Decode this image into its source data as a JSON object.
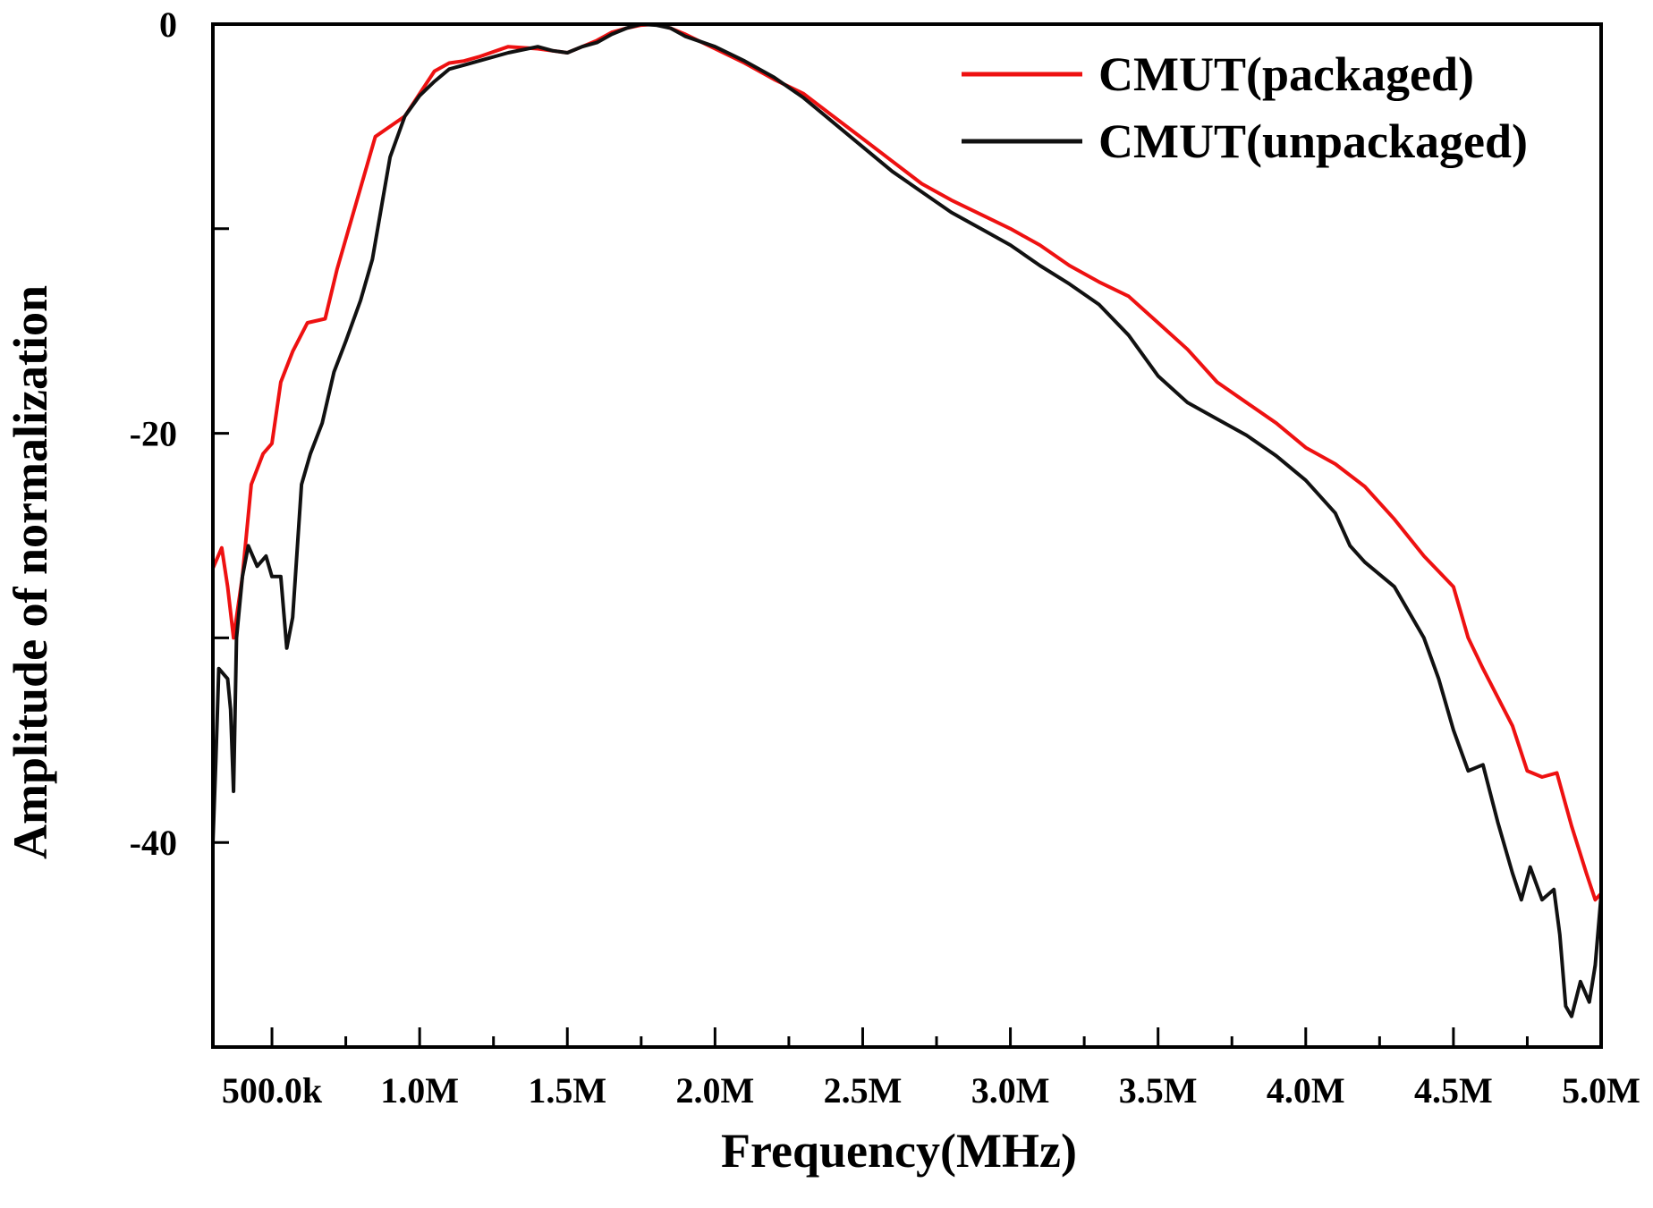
{
  "chart_data": {
    "type": "line",
    "title": "",
    "xlabel": "Frequency(MHz)",
    "ylabel": "Amplitude of normalization",
    "xlim": [
      0.3,
      5.0
    ],
    "ylim": [
      -50,
      0
    ],
    "xticks": [
      {
        "value": 0.5,
        "label": "500.0k"
      },
      {
        "value": 1.0,
        "label": "1.0M"
      },
      {
        "value": 1.5,
        "label": "1.5M"
      },
      {
        "value": 2.0,
        "label": "2.0M"
      },
      {
        "value": 2.5,
        "label": "2.5M"
      },
      {
        "value": 3.0,
        "label": "3.0M"
      },
      {
        "value": 3.5,
        "label": "3.5M"
      },
      {
        "value": 4.0,
        "label": "4.0M"
      },
      {
        "value": 4.5,
        "label": "4.5M"
      },
      {
        "value": 5.0,
        "label": "5.0M"
      }
    ],
    "yticks": [
      {
        "value": 0,
        "label": "0"
      },
      {
        "value": -10,
        "label": ""
      },
      {
        "value": -20,
        "label": "-20"
      },
      {
        "value": -30,
        "label": ""
      },
      {
        "value": -40,
        "label": "-40"
      }
    ],
    "legend_position": "top-right",
    "series": [
      {
        "name": "CMUT(packaged)",
        "color": "#ee1111",
        "points": [
          [
            0.3,
            -26.6
          ],
          [
            0.33,
            -25.6
          ],
          [
            0.35,
            -27.5
          ],
          [
            0.37,
            -30.0
          ],
          [
            0.4,
            -27.0
          ],
          [
            0.43,
            -22.5
          ],
          [
            0.47,
            -21.0
          ],
          [
            0.5,
            -20.5
          ],
          [
            0.53,
            -17.5
          ],
          [
            0.57,
            -16.0
          ],
          [
            0.62,
            -14.6
          ],
          [
            0.68,
            -14.4
          ],
          [
            0.72,
            -12.0
          ],
          [
            0.78,
            -9.0
          ],
          [
            0.85,
            -5.5
          ],
          [
            0.9,
            -5.0
          ],
          [
            0.95,
            -4.5
          ],
          [
            1.0,
            -3.4
          ],
          [
            1.05,
            -2.3
          ],
          [
            1.1,
            -1.9
          ],
          [
            1.15,
            -1.8
          ],
          [
            1.2,
            -1.6
          ],
          [
            1.3,
            -1.1
          ],
          [
            1.4,
            -1.2
          ],
          [
            1.5,
            -1.4
          ],
          [
            1.55,
            -1.1
          ],
          [
            1.6,
            -0.8
          ],
          [
            1.65,
            -0.4
          ],
          [
            1.7,
            -0.2
          ],
          [
            1.75,
            -0.05
          ],
          [
            1.8,
            0.0
          ],
          [
            1.85,
            -0.2
          ],
          [
            1.9,
            -0.5
          ],
          [
            2.0,
            -1.2
          ],
          [
            2.1,
            -1.9
          ],
          [
            2.2,
            -2.7
          ],
          [
            2.3,
            -3.4
          ],
          [
            2.4,
            -4.5
          ],
          [
            2.5,
            -5.6
          ],
          [
            2.6,
            -6.7
          ],
          [
            2.7,
            -7.8
          ],
          [
            2.8,
            -8.6
          ],
          [
            2.9,
            -9.3
          ],
          [
            3.0,
            -10.0
          ],
          [
            3.1,
            -10.8
          ],
          [
            3.2,
            -11.8
          ],
          [
            3.3,
            -12.6
          ],
          [
            3.4,
            -13.3
          ],
          [
            3.5,
            -14.6
          ],
          [
            3.6,
            -15.9
          ],
          [
            3.7,
            -17.5
          ],
          [
            3.8,
            -18.5
          ],
          [
            3.9,
            -19.5
          ],
          [
            4.0,
            -20.7
          ],
          [
            4.1,
            -21.5
          ],
          [
            4.2,
            -22.6
          ],
          [
            4.3,
            -24.2
          ],
          [
            4.4,
            -26.0
          ],
          [
            4.5,
            -27.5
          ],
          [
            4.55,
            -30.0
          ],
          [
            4.6,
            -31.5
          ],
          [
            4.7,
            -34.3
          ],
          [
            4.75,
            -36.5
          ],
          [
            4.8,
            -36.8
          ],
          [
            4.85,
            -36.6
          ],
          [
            4.9,
            -39.2
          ],
          [
            4.95,
            -41.5
          ],
          [
            4.98,
            -42.8
          ],
          [
            5.0,
            -42.5
          ]
        ]
      },
      {
        "name": "CMUT(unpackaged)",
        "color": "#111111",
        "points": [
          [
            0.3,
            -40.0
          ],
          [
            0.31,
            -36.0
          ],
          [
            0.32,
            -31.5
          ],
          [
            0.35,
            -32.0
          ],
          [
            0.36,
            -33.5
          ],
          [
            0.37,
            -37.5
          ],
          [
            0.38,
            -30.0
          ],
          [
            0.4,
            -27.0
          ],
          [
            0.42,
            -25.5
          ],
          [
            0.45,
            -26.5
          ],
          [
            0.48,
            -26.0
          ],
          [
            0.5,
            -27.0
          ],
          [
            0.53,
            -27.0
          ],
          [
            0.55,
            -30.5
          ],
          [
            0.57,
            -29.0
          ],
          [
            0.6,
            -22.5
          ],
          [
            0.63,
            -21.0
          ],
          [
            0.67,
            -19.5
          ],
          [
            0.71,
            -17.0
          ],
          [
            0.75,
            -15.5
          ],
          [
            0.8,
            -13.5
          ],
          [
            0.84,
            -11.5
          ],
          [
            0.87,
            -9.0
          ],
          [
            0.9,
            -6.5
          ],
          [
            0.95,
            -4.5
          ],
          [
            1.0,
            -3.5
          ],
          [
            1.05,
            -2.8
          ],
          [
            1.1,
            -2.2
          ],
          [
            1.15,
            -2.0
          ],
          [
            1.2,
            -1.8
          ],
          [
            1.3,
            -1.4
          ],
          [
            1.4,
            -1.1
          ],
          [
            1.45,
            -1.3
          ],
          [
            1.5,
            -1.4
          ],
          [
            1.55,
            -1.1
          ],
          [
            1.6,
            -0.9
          ],
          [
            1.65,
            -0.5
          ],
          [
            1.7,
            -0.2
          ],
          [
            1.75,
            0.0
          ],
          [
            1.8,
            -0.05
          ],
          [
            1.85,
            -0.2
          ],
          [
            1.9,
            -0.6
          ],
          [
            2.0,
            -1.1
          ],
          [
            2.1,
            -1.8
          ],
          [
            2.2,
            -2.6
          ],
          [
            2.3,
            -3.6
          ],
          [
            2.4,
            -4.8
          ],
          [
            2.5,
            -6.0
          ],
          [
            2.6,
            -7.2
          ],
          [
            2.7,
            -8.2
          ],
          [
            2.8,
            -9.2
          ],
          [
            2.9,
            -10.0
          ],
          [
            3.0,
            -10.8
          ],
          [
            3.1,
            -11.8
          ],
          [
            3.2,
            -12.7
          ],
          [
            3.3,
            -13.7
          ],
          [
            3.4,
            -15.2
          ],
          [
            3.5,
            -17.2
          ],
          [
            3.6,
            -18.5
          ],
          [
            3.7,
            -19.3
          ],
          [
            3.8,
            -20.1
          ],
          [
            3.9,
            -21.1
          ],
          [
            4.0,
            -22.3
          ],
          [
            4.1,
            -23.9
          ],
          [
            4.15,
            -25.5
          ],
          [
            4.2,
            -26.3
          ],
          [
            4.3,
            -27.5
          ],
          [
            4.4,
            -30.0
          ],
          [
            4.45,
            -32.0
          ],
          [
            4.5,
            -34.5
          ],
          [
            4.55,
            -36.5
          ],
          [
            4.6,
            -36.2
          ],
          [
            4.65,
            -39.0
          ],
          [
            4.7,
            -41.5
          ],
          [
            4.73,
            -42.8
          ],
          [
            4.76,
            -41.2
          ],
          [
            4.8,
            -42.8
          ],
          [
            4.84,
            -42.3
          ],
          [
            4.86,
            -44.5
          ],
          [
            4.88,
            -48.0
          ],
          [
            4.9,
            -48.5
          ],
          [
            4.93,
            -46.8
          ],
          [
            4.96,
            -47.8
          ],
          [
            4.98,
            -46.0
          ],
          [
            5.0,
            -42.6
          ]
        ]
      }
    ]
  }
}
